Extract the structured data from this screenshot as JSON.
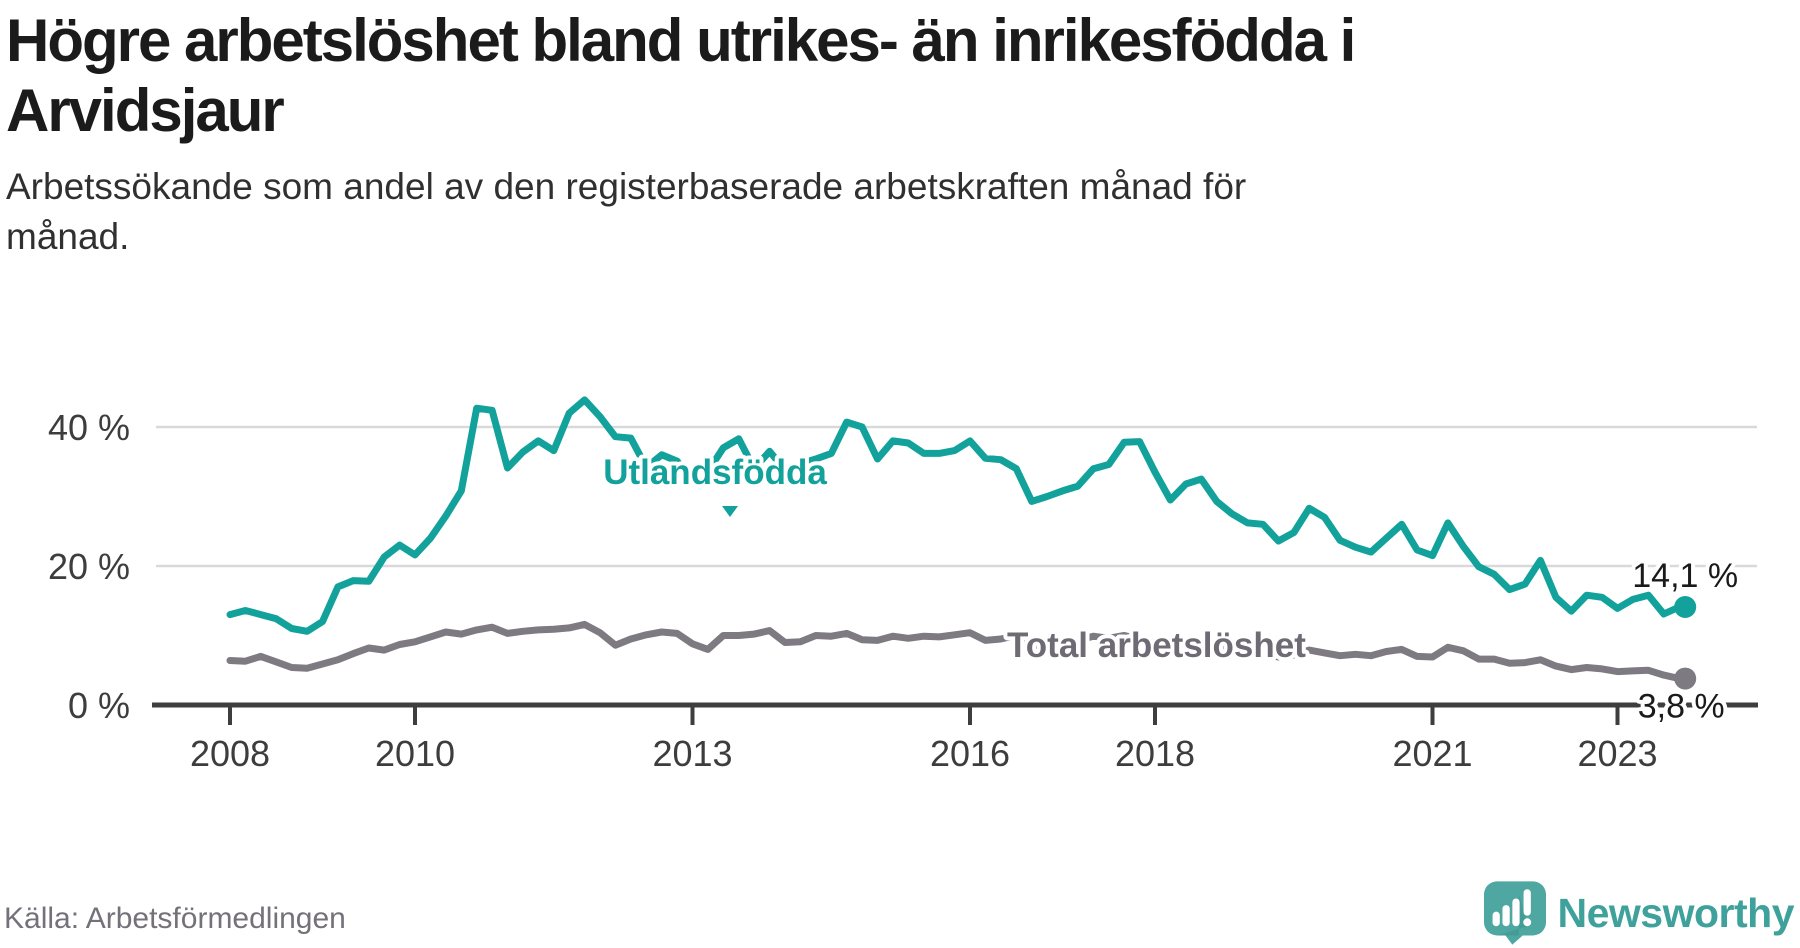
{
  "header": {
    "title_lines": [
      "Högre arbetslöshet bland utrikes- än inrikesfödda i",
      "Arvidsjaur"
    ],
    "subtitle_lines": [
      "Arbetssökande som andel av den registerbaserade arbetskraften månad för",
      "månad."
    ]
  },
  "footer": {
    "source": "Källa: Arbetsförmedlingen",
    "brand": "Newsworthy"
  },
  "colors": {
    "teal": "#12a29b",
    "gray": "#7d7a82",
    "grid": "#d9d9d9",
    "axis": "#3e3e3e",
    "axis_text": "#3d3d3d",
    "label_gray": "#6e6b74",
    "annotation": "#1a1a1a",
    "brand_teal": "#4ea7a1",
    "brand_text": "#3fa19b"
  },
  "chart_data": {
    "type": "line",
    "title": "Högre arbetslöshet bland utrikes- än inrikesfödda i Arvidsjaur",
    "subtitle": "Arbetssökande som andel av den registerbaserade arbetskraften månad för månad.",
    "source": "Källa: Arbetsförmedlingen",
    "xlabel": "",
    "ylabel": "",
    "ylim": [
      0,
      45
    ],
    "grid": "horizontal",
    "legend": "inline-labels",
    "x_start_year": 2008.0,
    "x_step_years": 0.16667,
    "x_ticks": [
      {
        "year": 2008,
        "label": "2008"
      },
      {
        "year": 2010,
        "label": "2010"
      },
      {
        "year": 2013,
        "label": "2013"
      },
      {
        "year": 2016,
        "label": "2016"
      },
      {
        "year": 2018,
        "label": "2018"
      },
      {
        "year": 2021,
        "label": "2021"
      },
      {
        "year": 2023,
        "label": "2023"
      }
    ],
    "y_ticks": [
      {
        "value": 0,
        "label": "0 %"
      },
      {
        "value": 20,
        "label": "20 %"
      },
      {
        "value": 40,
        "label": "40 %"
      }
    ],
    "series": [
      {
        "name": "Utlandsfödda",
        "color": "#12a29b",
        "end_label": "14,1 %",
        "end_value": 14.1,
        "values": [
          13.0,
          13.6,
          13.0,
          12.4,
          11.0,
          10.6,
          12.0,
          17.0,
          17.9,
          17.8,
          21.3,
          23.0,
          21.6,
          24.0,
          27.2,
          30.8,
          42.7,
          42.4,
          34.1,
          36.4,
          38.0,
          36.6,
          42.0,
          43.9,
          41.5,
          38.6,
          38.4,
          34.2,
          36.0,
          35.1,
          32.0,
          33.6,
          37.0,
          38.3,
          34.0,
          36.5,
          33.8,
          34.7,
          35.4,
          36.2,
          40.7,
          40.0,
          35.4,
          38.0,
          37.7,
          36.2,
          36.2,
          36.6,
          38.0,
          35.5,
          35.3,
          34.0,
          29.3,
          30.0,
          30.8,
          31.5,
          34.0,
          34.6,
          37.8,
          37.9,
          33.5,
          29.5,
          31.8,
          32.5,
          29.3,
          27.5,
          26.2,
          26.0,
          23.6,
          24.8,
          28.3,
          27.0,
          23.7,
          22.7,
          22.0,
          24.0,
          26.0,
          22.3,
          21.5,
          26.2,
          22.8,
          19.9,
          18.8,
          16.6,
          17.4,
          20.8,
          15.5,
          13.5,
          15.8,
          15.5,
          13.9,
          15.2,
          15.8,
          13.1,
          14.1
        ]
      },
      {
        "name": "Total arbetslöshet",
        "color": "#7d7a82",
        "end_label": "3,8 %",
        "end_value": 3.8,
        "values": [
          6.4,
          6.3,
          7.0,
          6.2,
          5.4,
          5.3,
          5.9,
          6.5,
          7.4,
          8.2,
          7.9,
          8.7,
          9.1,
          9.8,
          10.5,
          10.2,
          10.8,
          11.2,
          10.3,
          10.6,
          10.8,
          10.9,
          11.1,
          11.6,
          10.4,
          8.6,
          9.5,
          10.1,
          10.5,
          10.3,
          8.8,
          8.0,
          10.0,
          10.0,
          10.2,
          10.7,
          9.0,
          9.1,
          10.0,
          9.9,
          10.3,
          9.4,
          9.3,
          9.9,
          9.6,
          9.9,
          9.8,
          10.1,
          10.4,
          9.3,
          9.5,
          10.0,
          8.5,
          8.7,
          9.2,
          9.3,
          9.9,
          9.6,
          10.0,
          9.5,
          9.0,
          8.1,
          8.7,
          8.9,
          8.4,
          8.0,
          7.5,
          7.6,
          6.9,
          7.2,
          7.9,
          7.5,
          7.1,
          7.3,
          7.1,
          7.7,
          8.0,
          7.0,
          6.9,
          8.3,
          7.8,
          6.6,
          6.6,
          6.0,
          6.1,
          6.5,
          5.6,
          5.1,
          5.4,
          5.2,
          4.8,
          4.9,
          5.0,
          4.3,
          3.8
        ]
      }
    ]
  }
}
